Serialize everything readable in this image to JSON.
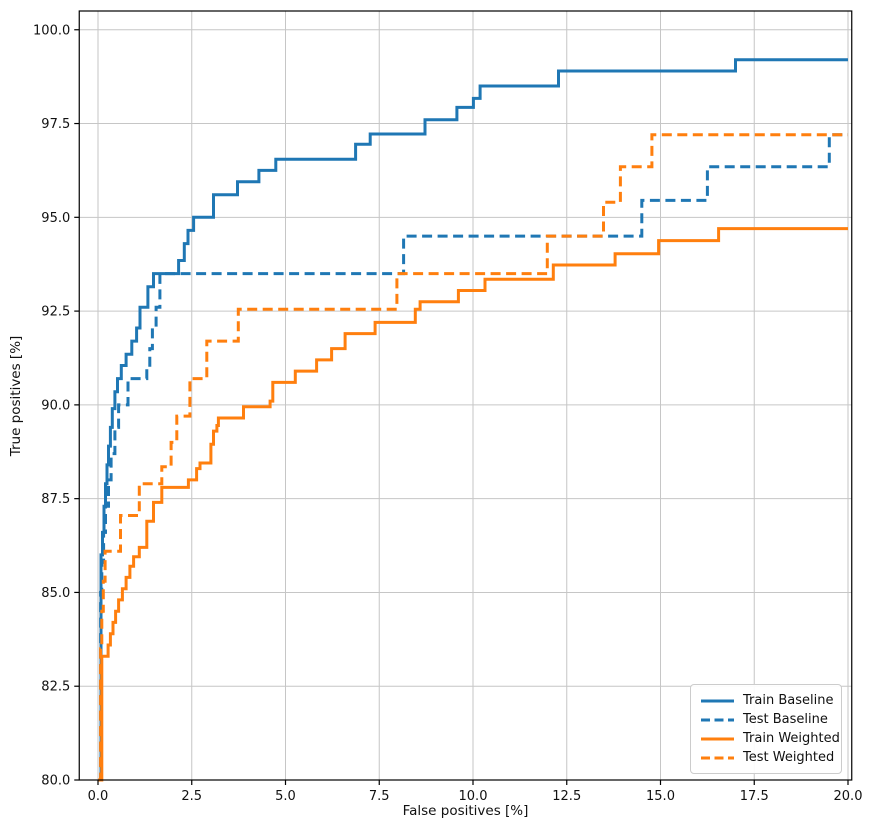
{
  "figure": {
    "background": "#ffffff"
  },
  "chart_data": {
    "type": "line",
    "subtype": "step-roc-curves",
    "title": "",
    "xlabel": "False positives [%]",
    "ylabel": "True positives [%]",
    "xlim": [
      -0.5,
      20.1
    ],
    "ylim": [
      80.0,
      100.5
    ],
    "xticks": [
      0.0,
      2.5,
      5.0,
      7.5,
      10.0,
      12.5,
      15.0,
      17.5,
      20.0
    ],
    "xtick_labels": [
      "0.0",
      "2.5",
      "5.0",
      "7.5",
      "10.0",
      "12.5",
      "15.0",
      "17.5",
      "20.0"
    ],
    "yticks": [
      80.0,
      82.5,
      85.0,
      87.5,
      90.0,
      92.5,
      95.0,
      97.5,
      100.0
    ],
    "ytick_labels": [
      "80.0",
      "82.5",
      "85.0",
      "87.5",
      "90.0",
      "92.5",
      "95.0",
      "97.5",
      "100.0"
    ],
    "grid": true,
    "grid_color": "#c6c6c6",
    "frame_color": "#000000",
    "legend_position": "lower right",
    "series": [
      {
        "name": "Train Baseline",
        "color": "#1f77b4",
        "style": "solid",
        "step_points": [
          [
            0,
            80
          ],
          [
            0.08,
            86.0
          ],
          [
            0.12,
            86.6
          ],
          [
            0.16,
            87.3
          ],
          [
            0.2,
            87.9
          ],
          [
            0.24,
            88.4
          ],
          [
            0.28,
            88.9
          ],
          [
            0.33,
            89.4
          ],
          [
            0.38,
            89.9
          ],
          [
            0.45,
            90.35
          ],
          [
            0.52,
            90.7
          ],
          [
            0.62,
            91.05
          ],
          [
            0.75,
            91.35
          ],
          [
            0.9,
            91.7
          ],
          [
            1.03,
            92.05
          ],
          [
            1.12,
            92.6
          ],
          [
            1.33,
            93.15
          ],
          [
            1.48,
            93.5
          ],
          [
            2.15,
            93.85
          ],
          [
            2.3,
            94.3
          ],
          [
            2.4,
            94.65
          ],
          [
            2.55,
            95.0
          ],
          [
            3.08,
            95.6
          ],
          [
            3.72,
            95.95
          ],
          [
            4.29,
            96.25
          ],
          [
            4.74,
            96.55
          ],
          [
            6.87,
            96.95
          ],
          [
            7.26,
            97.22
          ],
          [
            8.72,
            97.6
          ],
          [
            9.57,
            97.93
          ],
          [
            10.01,
            98.17
          ],
          [
            10.19,
            98.5
          ],
          [
            12.28,
            98.9
          ],
          [
            17.0,
            99.2
          ],
          [
            20,
            99.2
          ]
        ]
      },
      {
        "name": "Test Baseline",
        "color": "#1f77b4",
        "style": "dashed",
        "step_points": [
          [
            0,
            80
          ],
          [
            0.07,
            85.0
          ],
          [
            0.1,
            85.8
          ],
          [
            0.15,
            86.6
          ],
          [
            0.2,
            87.3
          ],
          [
            0.28,
            88.0
          ],
          [
            0.35,
            88.7
          ],
          [
            0.45,
            89.4
          ],
          [
            0.55,
            90.0
          ],
          [
            0.8,
            90.7
          ],
          [
            1.3,
            90.95
          ],
          [
            1.38,
            91.5
          ],
          [
            1.45,
            92.05
          ],
          [
            1.55,
            92.6
          ],
          [
            1.65,
            93.5
          ],
          [
            8.15,
            94.5
          ],
          [
            14.5,
            95.45
          ],
          [
            16.25,
            96.35
          ],
          [
            19.5,
            97.2
          ],
          [
            20,
            97.2
          ]
        ]
      },
      {
        "name": "Train Weighted",
        "color": "#ff7f0e",
        "style": "solid",
        "step_points": [
          [
            0,
            80
          ],
          [
            0.1,
            83.3
          ],
          [
            0.27,
            83.6
          ],
          [
            0.33,
            83.9
          ],
          [
            0.4,
            84.2
          ],
          [
            0.47,
            84.5
          ],
          [
            0.55,
            84.8
          ],
          [
            0.65,
            85.1
          ],
          [
            0.75,
            85.4
          ],
          [
            0.85,
            85.7
          ],
          [
            0.95,
            85.95
          ],
          [
            1.1,
            86.2
          ],
          [
            1.3,
            86.9
          ],
          [
            1.48,
            87.4
          ],
          [
            1.7,
            87.8
          ],
          [
            2.41,
            88.0
          ],
          [
            2.63,
            88.3
          ],
          [
            2.72,
            88.45
          ],
          [
            3.01,
            88.95
          ],
          [
            3.08,
            89.3
          ],
          [
            3.17,
            89.45
          ],
          [
            3.21,
            89.65
          ],
          [
            3.88,
            89.95
          ],
          [
            4.59,
            90.1
          ],
          [
            4.66,
            90.6
          ],
          [
            5.26,
            90.9
          ],
          [
            5.83,
            91.2
          ],
          [
            6.23,
            91.5
          ],
          [
            6.59,
            91.9
          ],
          [
            7.39,
            92.2
          ],
          [
            8.46,
            92.55
          ],
          [
            8.59,
            92.75
          ],
          [
            9.61,
            93.05
          ],
          [
            10.32,
            93.35
          ],
          [
            12.14,
            93.73
          ],
          [
            13.79,
            94.03
          ],
          [
            14.95,
            94.38
          ],
          [
            16.55,
            94.7
          ],
          [
            20,
            94.7
          ]
        ]
      },
      {
        "name": "Test Weighted",
        "color": "#ff7f0e",
        "style": "dashed",
        "step_points": [
          [
            0,
            80
          ],
          [
            0.07,
            83.5
          ],
          [
            0.1,
            84.5
          ],
          [
            0.14,
            85.3
          ],
          [
            0.19,
            86.1
          ],
          [
            0.6,
            87.05
          ],
          [
            1.1,
            87.9
          ],
          [
            1.7,
            88.35
          ],
          [
            1.95,
            89.0
          ],
          [
            2.1,
            89.7
          ],
          [
            2.45,
            90.7
          ],
          [
            2.9,
            91.7
          ],
          [
            3.74,
            92.55
          ],
          [
            7.97,
            93.5
          ],
          [
            11.98,
            94.5
          ],
          [
            13.48,
            95.4
          ],
          [
            13.93,
            96.35
          ],
          [
            14.77,
            97.2
          ],
          [
            20,
            97.2
          ]
        ]
      }
    ]
  }
}
